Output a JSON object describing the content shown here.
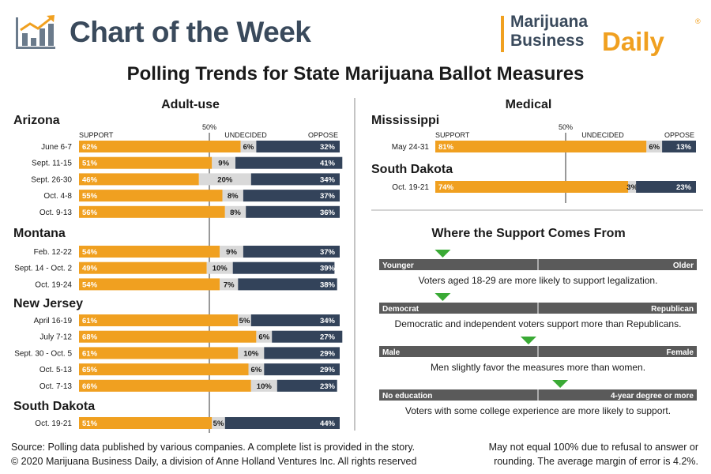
{
  "header": {
    "title": "Chart of the Week",
    "brand_line1": "Marijuana",
    "brand_line2": "Business",
    "brand_line3": "Daily",
    "brand_reg": "®"
  },
  "subtitle": "Polling Trends for State Marijuana Ballot Measures",
  "colors": {
    "support": "#f0a020",
    "undecided": "#d9d9d9",
    "oppose": "#33435a",
    "demo_bar": "#5a5a5a",
    "marker": "#3aaa35"
  },
  "chart_data": [
    {
      "type": "bar",
      "panel": "Adult-use",
      "stacked": true,
      "orientation": "horizontal",
      "column_labels": {
        "support": "SUPPORT",
        "midpoint": "50%",
        "undecided": "UNDECIDED",
        "oppose": "OPPOSE"
      },
      "states": [
        {
          "name": "Arizona",
          "rows": [
            {
              "label": "June 6-7",
              "support": 62,
              "undecided": 6,
              "oppose": 32
            },
            {
              "label": "Sept. 11-15",
              "support": 51,
              "undecided": 9,
              "oppose": 41
            },
            {
              "label": "Sept. 26-30",
              "support": 46,
              "undecided": 20,
              "oppose": 34
            },
            {
              "label": "Oct. 4-8",
              "support": 55,
              "undecided": 8,
              "oppose": 37
            },
            {
              "label": "Oct. 9-13",
              "support": 56,
              "undecided": 8,
              "oppose": 36
            }
          ]
        },
        {
          "name": "Montana",
          "rows": [
            {
              "label": "Feb. 12-22",
              "support": 54,
              "undecided": 9,
              "oppose": 37
            },
            {
              "label": "Sept. 14 - Oct. 2",
              "support": 49,
              "undecided": 10,
              "oppose": 39
            },
            {
              "label": "Oct. 19-24",
              "support": 54,
              "undecided": 7,
              "oppose": 38
            }
          ]
        },
        {
          "name": "New Jersey",
          "rows": [
            {
              "label": "April 16-19",
              "support": 61,
              "undecided": 5,
              "oppose": 34
            },
            {
              "label": "July 7-12",
              "support": 68,
              "undecided": 6,
              "oppose": 27
            },
            {
              "label": "Sept. 30 - Oct. 5",
              "support": 61,
              "undecided": 10,
              "oppose": 29
            },
            {
              "label": "Oct. 5-13",
              "support": 65,
              "undecided": 6,
              "oppose": 29
            },
            {
              "label": "Oct. 7-13",
              "support": 66,
              "undecided": 10,
              "oppose": 23
            }
          ]
        },
        {
          "name": "South Dakota",
          "rows": [
            {
              "label": "Oct. 19-21",
              "support": 51,
              "undecided": 5,
              "oppose": 44
            }
          ]
        }
      ]
    },
    {
      "type": "bar",
      "panel": "Medical",
      "stacked": true,
      "orientation": "horizontal",
      "column_labels": {
        "support": "SUPPORT",
        "midpoint": "50%",
        "undecided": "UNDECIDED",
        "oppose": "OPPOSE"
      },
      "states": [
        {
          "name": "Mississippi",
          "rows": [
            {
              "label": "May 24-31",
              "support": 81,
              "undecided": 6,
              "oppose": 13
            }
          ]
        },
        {
          "name": "South Dakota",
          "rows": [
            {
              "label": "Oct. 19-21",
              "support": 74,
              "undecided": 3,
              "oppose": 23
            }
          ]
        }
      ]
    }
  ],
  "demographics": {
    "title": "Where the Support Comes From",
    "rows": [
      {
        "left": "Younger",
        "right": "Older",
        "marker": 0.2,
        "caption": "Voters aged 18-29 are more likely to support legalization."
      },
      {
        "left": "Democrat",
        "right": "Republican",
        "marker": 0.2,
        "caption": "Democratic and independent voters support more than Republicans."
      },
      {
        "left": "Male",
        "right": "Female",
        "marker": 0.47,
        "caption": "Men slightly favor the measures more than women."
      },
      {
        "left": "No education",
        "right": "4-year degree or more",
        "marker": 0.57,
        "caption": "Voters with some college experience are more likely to support."
      }
    ]
  },
  "footer": {
    "source": "Source: Polling data published by various companies. A complete list is provided in the story.",
    "copyright": "© 2020 Marijuana Business Daily, a division of Anne Holland Ventures Inc. All rights reserved",
    "note_line1": "May not equal 100% due to refusal to answer or",
    "note_line2": "rounding. The average margin of error is 4.2%."
  }
}
